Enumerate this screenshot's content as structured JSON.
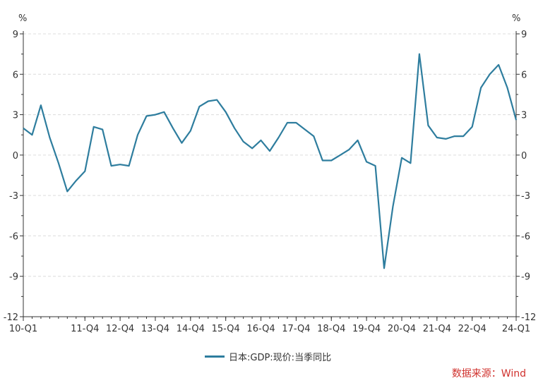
{
  "chart_data": {
    "type": "line",
    "y_unit_left": "%",
    "y_unit_right": "%",
    "ylim": [
      -12,
      9
    ],
    "yticks": [
      9,
      6,
      3,
      0,
      -3,
      -6,
      -9,
      -12
    ],
    "ytick_labels": [
      "9",
      "6",
      "3",
      "0",
      "-3",
      "-6",
      "-9",
      "-12"
    ],
    "x_tick_labels": [
      {
        "label": "10-Q1",
        "index": 0
      },
      {
        "label": "11-Q4",
        "index": 7
      },
      {
        "label": "12-Q4",
        "index": 11
      },
      {
        "label": "13-Q4",
        "index": 15
      },
      {
        "label": "14-Q4",
        "index": 19
      },
      {
        "label": "15-Q4",
        "index": 23
      },
      {
        "label": "16-Q4",
        "index": 27
      },
      {
        "label": "17-Q4",
        "index": 31
      },
      {
        "label": "18-Q4",
        "index": 35
      },
      {
        "label": "19-Q4",
        "index": 39
      },
      {
        "label": "20-Q4",
        "index": 43
      },
      {
        "label": "21-Q4",
        "index": 47
      },
      {
        "label": "22-Q4",
        "index": 51
      },
      {
        "label": "24-Q1",
        "index": 56
      }
    ],
    "grid": "horizontal dashed",
    "legend_position": "bottom-center",
    "series": [
      {
        "name": "日本:GDP:现价:当季同比",
        "color": "#2e7d9e",
        "values": [
          2.0,
          1.5,
          3.7,
          1.3,
          -0.6,
          -2.7,
          -1.9,
          -1.2,
          2.1,
          1.9,
          -0.8,
          -0.7,
          -0.8,
          1.5,
          2.9,
          3.0,
          3.2,
          2.0,
          0.9,
          1.8,
          3.6,
          4.0,
          4.1,
          3.2,
          2.0,
          1.0,
          0.5,
          1.1,
          0.3,
          1.3,
          2.4,
          2.4,
          1.9,
          1.4,
          -0.4,
          -0.4,
          0.0,
          0.4,
          1.1,
          -0.5,
          -0.8,
          -8.4,
          -3.8,
          -0.2,
          -0.6,
          7.5,
          2.2,
          1.3,
          1.2,
          1.4,
          1.4,
          2.1,
          5.0,
          6.0,
          6.7,
          5.0,
          2.6
        ]
      }
    ]
  },
  "source": "数据来源：Wind"
}
